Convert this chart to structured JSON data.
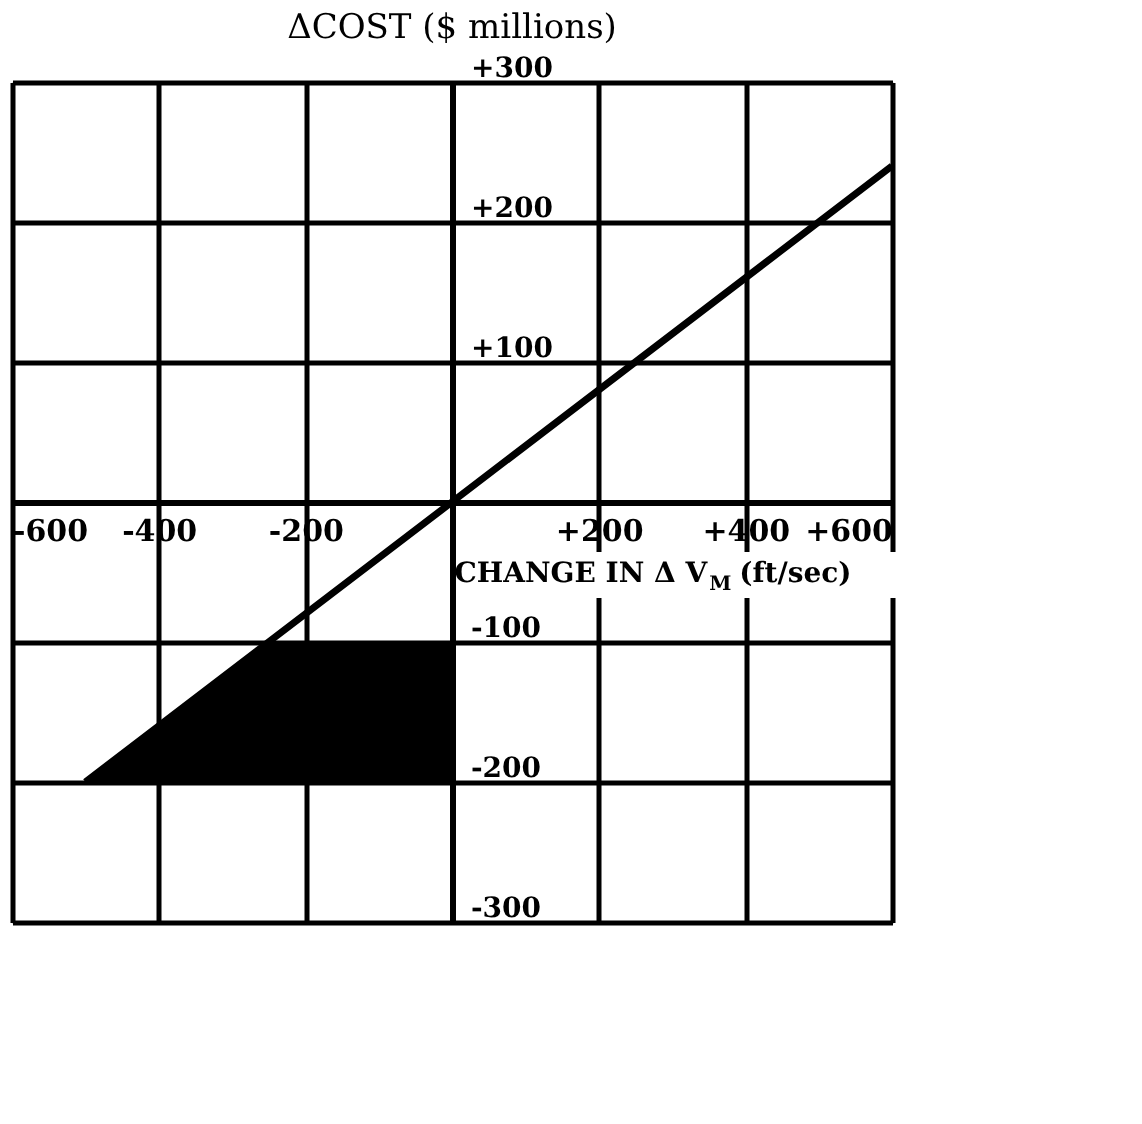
{
  "chart_data": {
    "type": "line",
    "title": "ΔCOST ($ millions)",
    "xlabel": "CHANGE IN Δ V$_{M}$ (ft/sec)",
    "xlim": [
      -600,
      600
    ],
    "ylim": [
      -300,
      300
    ],
    "xticks": [
      -600,
      -400,
      -200,
      {
        "value": 0,
        "label": null
      },
      {
        "value": 200,
        "label": "+200"
      },
      {
        "value": 400,
        "label": "+400"
      },
      {
        "value": 600,
        "label": "+600"
      }
    ],
    "yticks": [
      -300,
      -200,
      -100,
      {
        "value": 0,
        "label": null
      },
      {
        "value": 100,
        "label": "+100"
      },
      {
        "value": 200,
        "label": "+200"
      },
      {
        "value": 300,
        "label": "+300"
      }
    ],
    "grid": true,
    "series": [
      {
        "type": "area",
        "color": "#000000",
        "x": [
          -500,
          -250,
          0,
          0
        ],
        "values": [
          -200,
          -100,
          -100,
          -200
        ]
      },
      {
        "color": "#000000",
        "x": [
          -500,
          0,
          600
        ],
        "values": [
          -200,
          0,
          240
        ]
      }
    ]
  }
}
